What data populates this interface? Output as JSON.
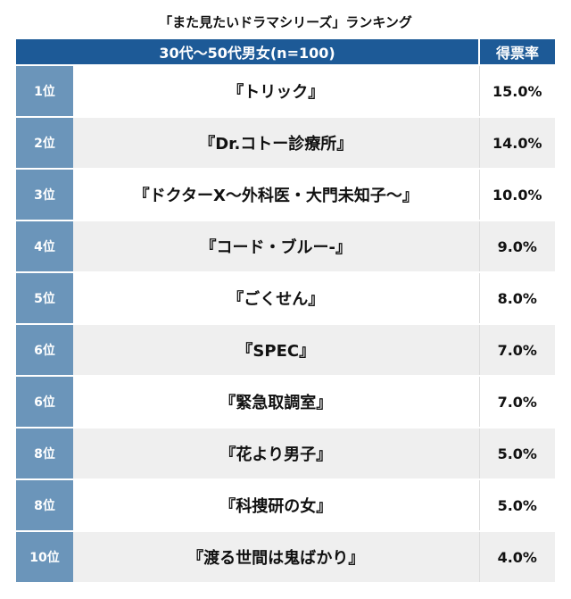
{
  "title": "「また見たいドラマシリーズ」ランキング",
  "header": {
    "group": "30代〜50代男女(n=100)",
    "rate": "得票率"
  },
  "rows": [
    {
      "rank": "1位",
      "name": "『トリック』",
      "rate": "15.0%"
    },
    {
      "rank": "2位",
      "name": "『Dr.コトー診療所』",
      "rate": "14.0%"
    },
    {
      "rank": "3位",
      "name": "『ドクターX〜外科医・大門未知子〜』",
      "rate": "10.0%"
    },
    {
      "rank": "4位",
      "name": "『コード・ブルー-』",
      "rate": "9.0%"
    },
    {
      "rank": "5位",
      "name": "『ごくせん』",
      "rate": "8.0%"
    },
    {
      "rank": "6位",
      "name": "『SPEC』",
      "rate": "7.0%"
    },
    {
      "rank": "6位",
      "name": "『緊急取調室』",
      "rate": "7.0%"
    },
    {
      "rank": "8位",
      "name": "『花より男子』",
      "rate": "5.0%"
    },
    {
      "rank": "8位",
      "name": "『科捜研の女』",
      "rate": "5.0%"
    },
    {
      "rank": "10位",
      "name": "『渡る世間は鬼ばかり』",
      "rate": "4.0%"
    }
  ]
}
